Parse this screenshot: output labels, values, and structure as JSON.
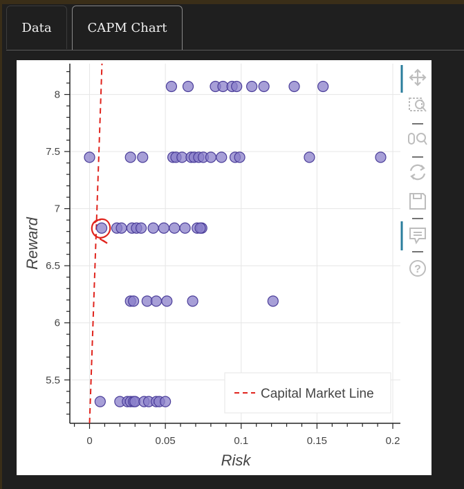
{
  "tabs": [
    {
      "label": "Data",
      "active": false
    },
    {
      "label": "CAPM Chart",
      "active": true
    }
  ],
  "toolbar": {
    "tools": [
      "pan-icon",
      "box-zoom-icon",
      "wheel-zoom-icon",
      "reset-icon",
      "save-icon",
      "hover-icon",
      "help-icon"
    ],
    "active_tools": [
      "pan-icon",
      "hover-icon"
    ]
  },
  "chart_data": {
    "type": "scatter",
    "xlabel": "Risk",
    "ylabel": "Reward",
    "xlim": [
      -0.013,
      0.205
    ],
    "ylim": [
      5.12,
      8.27
    ],
    "xticks": [
      0,
      0.05,
      0.1,
      0.15,
      0.2
    ],
    "xtick_labels": [
      "0",
      "0.05",
      "0.1",
      "0.15",
      "0.2"
    ],
    "yticks": [
      5.5,
      6,
      6.5,
      7,
      7.5,
      8
    ],
    "ytick_labels": [
      "5.5",
      "6",
      "6.5",
      "7",
      "7.5",
      "8"
    ],
    "grid": true,
    "colors": {
      "points": "#8a7fc9",
      "point_stroke": "#4a3d99",
      "line": "#e0231c",
      "annotation": "#e0231c",
      "grid": "#e6e6e6",
      "axis": "#222222",
      "tick_text": "#444444",
      "toolbar_accent": "#2a7d9c",
      "toolbar_icon": "#bdbdbd"
    },
    "series": [
      {
        "values": [
          {
            "x": 0.054,
            "y": 8.07
          },
          {
            "x": 0.065,
            "y": 8.07
          },
          {
            "x": 0.083,
            "y": 8.07
          },
          {
            "x": 0.088,
            "y": 8.07
          },
          {
            "x": 0.094,
            "y": 8.07
          },
          {
            "x": 0.097,
            "y": 8.07
          },
          {
            "x": 0.107,
            "y": 8.07
          },
          {
            "x": 0.115,
            "y": 8.07
          },
          {
            "x": 0.135,
            "y": 8.07
          },
          {
            "x": 0.154,
            "y": 8.07
          },
          {
            "x": 0.0,
            "y": 7.45
          },
          {
            "x": 0.027,
            "y": 7.45
          },
          {
            "x": 0.035,
            "y": 7.45
          },
          {
            "x": 0.055,
            "y": 7.45
          },
          {
            "x": 0.057,
            "y": 7.45
          },
          {
            "x": 0.061,
            "y": 7.45
          },
          {
            "x": 0.067,
            "y": 7.45
          },
          {
            "x": 0.069,
            "y": 7.45
          },
          {
            "x": 0.072,
            "y": 7.45
          },
          {
            "x": 0.075,
            "y": 7.45
          },
          {
            "x": 0.08,
            "y": 7.45
          },
          {
            "x": 0.087,
            "y": 7.45
          },
          {
            "x": 0.096,
            "y": 7.45
          },
          {
            "x": 0.099,
            "y": 7.45
          },
          {
            "x": 0.145,
            "y": 7.45
          },
          {
            "x": 0.192,
            "y": 7.45
          },
          {
            "x": 0.008,
            "y": 6.83
          },
          {
            "x": 0.018,
            "y": 6.83
          },
          {
            "x": 0.021,
            "y": 6.83
          },
          {
            "x": 0.028,
            "y": 6.83
          },
          {
            "x": 0.031,
            "y": 6.83
          },
          {
            "x": 0.034,
            "y": 6.83
          },
          {
            "x": 0.042,
            "y": 6.83
          },
          {
            "x": 0.049,
            "y": 6.83
          },
          {
            "x": 0.056,
            "y": 6.83
          },
          {
            "x": 0.063,
            "y": 6.83
          },
          {
            "x": 0.071,
            "y": 6.83
          },
          {
            "x": 0.074,
            "y": 6.83
          },
          {
            "x": 0.073,
            "y": 6.83
          },
          {
            "x": 0.027,
            "y": 6.19
          },
          {
            "x": 0.029,
            "y": 6.19
          },
          {
            "x": 0.038,
            "y": 6.19
          },
          {
            "x": 0.044,
            "y": 6.19
          },
          {
            "x": 0.051,
            "y": 6.19
          },
          {
            "x": 0.068,
            "y": 6.19
          },
          {
            "x": 0.121,
            "y": 6.19
          },
          {
            "x": 0.007,
            "y": 5.31
          },
          {
            "x": 0.02,
            "y": 5.31
          },
          {
            "x": 0.025,
            "y": 5.31
          },
          {
            "x": 0.027,
            "y": 5.31
          },
          {
            "x": 0.029,
            "y": 5.31
          },
          {
            "x": 0.03,
            "y": 5.31
          },
          {
            "x": 0.036,
            "y": 5.31
          },
          {
            "x": 0.039,
            "y": 5.31
          },
          {
            "x": 0.044,
            "y": 5.31
          },
          {
            "x": 0.046,
            "y": 5.31
          },
          {
            "x": 0.05,
            "y": 5.31
          }
        ]
      },
      {
        "name": "Capital Market Line",
        "style": "dashed",
        "values": [
          {
            "x": 0.0,
            "y": 5.12
          },
          {
            "x": 0.0082,
            "y": 8.27
          }
        ]
      }
    ],
    "legend": {
      "entries": [
        "Capital Market Line"
      ],
      "placement": "bottom-right"
    },
    "annotation": {
      "type": "hand-drawn-circle",
      "around": {
        "x": 0.008,
        "y": 6.83
      }
    }
  }
}
